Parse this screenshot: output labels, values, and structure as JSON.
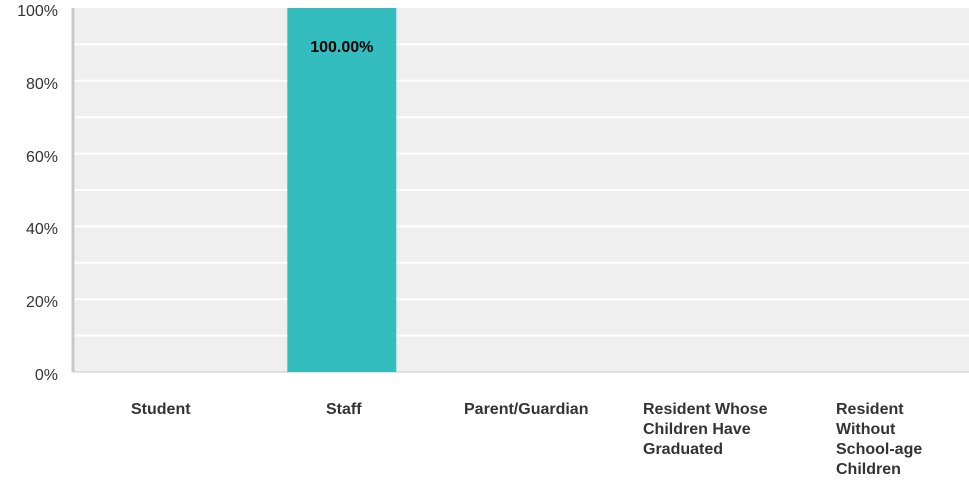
{
  "chart_data": {
    "type": "bar",
    "title": "",
    "xlabel": "",
    "ylabel": "",
    "categories": [
      "Student",
      "Staff",
      "Parent/Guardian",
      "Resident Whose Children Have Graduated",
      "Resident Without School-age Children"
    ],
    "values": [
      0,
      100,
      0,
      0,
      0
    ],
    "data_labels": [
      "",
      "100.00%",
      "",
      "",
      ""
    ],
    "ylim": [
      0,
      100
    ],
    "yticks": [
      "0%",
      "20%",
      "40%",
      "60%",
      "80%",
      "100%"
    ],
    "grid": true,
    "legend": "none",
    "colors": {
      "bar": "#33bdbf",
      "plot_background": "#efefef",
      "gridline": "#ffffff",
      "axis": "#c8c8c8",
      "text": "#333333",
      "data_label": "#000000"
    }
  }
}
